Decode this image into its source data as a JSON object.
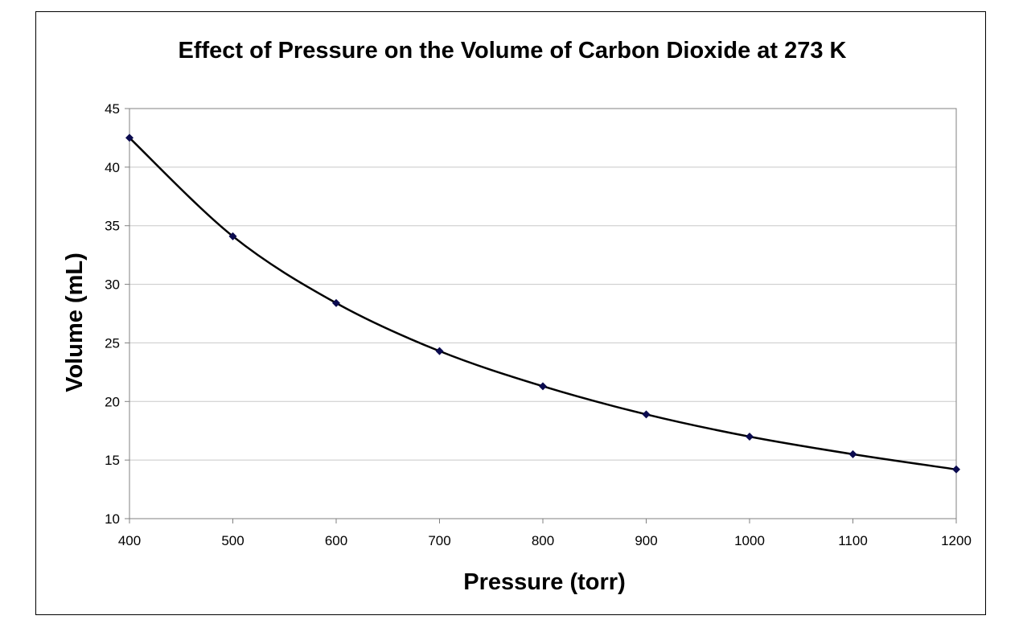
{
  "chart_data": {
    "type": "line",
    "title": "Effect of Pressure on the Volume of Carbon Dioxide at 273 K",
    "xlabel": "Pressure (torr)",
    "ylabel": "Volume (mL)",
    "xlim": [
      400,
      1200
    ],
    "ylim": [
      10,
      45
    ],
    "xticks": [
      400,
      500,
      600,
      700,
      800,
      900,
      1000,
      1100,
      1200
    ],
    "yticks": [
      10,
      15,
      20,
      25,
      30,
      35,
      40,
      45
    ],
    "grid": "horizontal",
    "legend": "none",
    "series": [
      {
        "marker": "diamond",
        "line": "smoothed",
        "color": "#000000",
        "marker_color": "#0b0b4f",
        "x": [
          400,
          500,
          600,
          700,
          800,
          900,
          1000,
          1100,
          1200
        ],
        "y": [
          42.5,
          34.1,
          28.4,
          24.3,
          21.3,
          18.9,
          17.0,
          15.5,
          14.2
        ]
      }
    ]
  }
}
